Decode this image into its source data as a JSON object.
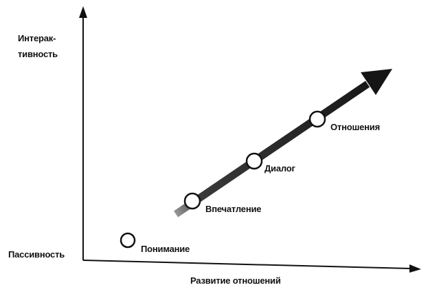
{
  "y_axis": {
    "label_line1": "Интерак-",
    "label_line2": "тивность",
    "min_label": "Пассивность"
  },
  "x_axis": {
    "label": "Развитие отношений"
  },
  "stages": [
    {
      "label": "Понимание"
    },
    {
      "label": "Впечатление"
    },
    {
      "label": "Диалог"
    },
    {
      "label": "Отношения"
    }
  ],
  "colors": {
    "ink": "#111111",
    "arrow": "#2a2a2a",
    "background": "#ffffff"
  }
}
